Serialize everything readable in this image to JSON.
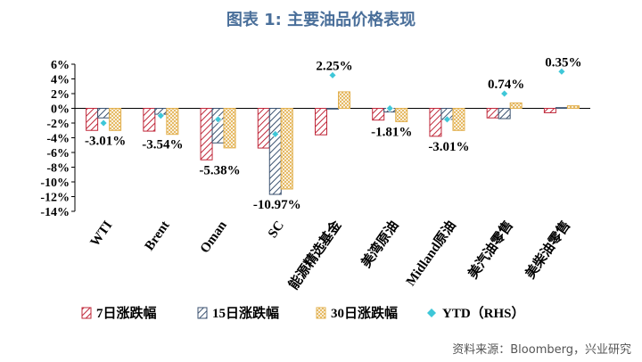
{
  "title": "图表 1:  主要油品价格表现",
  "source": "资料来源：Bloomberg，兴业研究",
  "colors": {
    "s7": "#c0283a",
    "s15": "#3b5270",
    "s30": "#e2b04e",
    "ytd": "#3ec7d8",
    "title": "#4a6f9a"
  },
  "chart_data": {
    "type": "bar",
    "title": "主要油品价格表现",
    "categories": [
      "WTI",
      "Brent",
      "Oman",
      "SC",
      "能源精选基金",
      "美湾原油",
      "Midland原油",
      "美汽油零售",
      "美柴油零售"
    ],
    "series": [
      {
        "name": "7日涨跌幅",
        "values": [
          -3.0,
          -3.1,
          -7.0,
          -5.4,
          -3.6,
          -1.6,
          -3.8,
          -1.3,
          -0.6
        ]
      },
      {
        "name": "15日涨跌幅",
        "values": [
          -1.3,
          -0.8,
          -4.7,
          -11.7,
          -0.1,
          -0.5,
          -1.5,
          -1.4,
          0.1
        ]
      },
      {
        "name": "30日涨跌幅",
        "values": [
          -3.01,
          -3.54,
          -5.38,
          -10.97,
          2.25,
          -1.81,
          -3.01,
          0.74,
          0.35
        ]
      },
      {
        "name": "YTD（RHS）",
        "values": [
          -2.0,
          -1.0,
          -1.5,
          -3.5,
          4.5,
          0.0,
          -1.5,
          2.0,
          5.0
        ]
      }
    ],
    "data_labels": [
      "-3.01%",
      "-3.54%",
      "-5.38%",
      "-10.97%",
      "2.25%",
      "-1.81%",
      "-3.01%",
      "0.74%",
      "0.35%"
    ],
    "y_ticks": [
      "6%",
      "4%",
      "2%",
      "0%",
      "-2%",
      "-4%",
      "-6%",
      "-8%",
      "-10%",
      "-12%",
      "-14%"
    ],
    "ylim": [
      -14,
      6
    ],
    "ylabel": "",
    "xlabel": "",
    "legend_position": "bottom"
  }
}
